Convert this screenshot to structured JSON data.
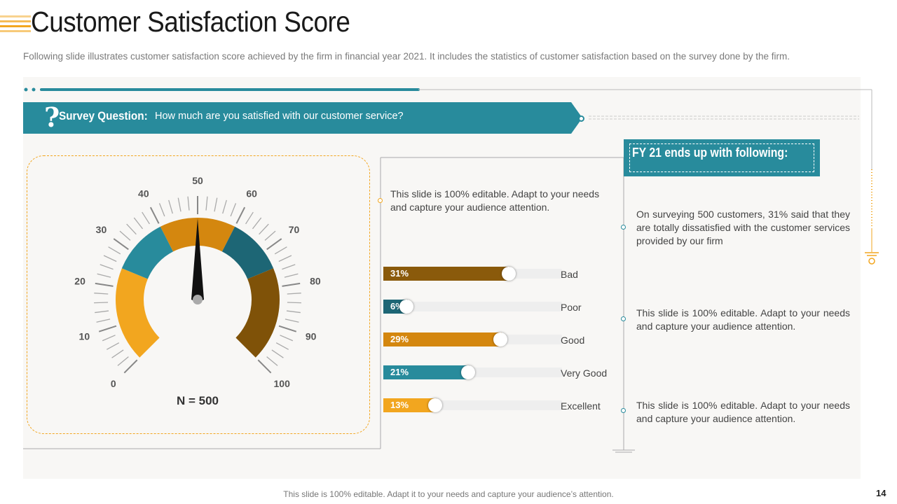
{
  "header": {
    "title": "Customer Satisfaction Score",
    "subtitle": "Following slide illustrates customer satisfaction score achieved by the firm in financial year 2021. It includes the statistics of customer satisfaction based on the survey done by the firm."
  },
  "survey": {
    "icon": "question-icon",
    "icon_glyph": "?",
    "label": "Survey Question:",
    "question": "How much are you satisfied with our customer service?"
  },
  "gauge": {
    "n_label": "N = 500",
    "scale_labels": [
      "0",
      "10",
      "20",
      "30",
      "40",
      "50",
      "60",
      "70",
      "80",
      "90",
      "100"
    ],
    "needle_value": 50
  },
  "bar_note": "This slide is 100% editable. Adapt to your needs and capture your audience attention.",
  "summary": {
    "heading": "FY 21 ends up with following:",
    "notes": [
      "On surveying 500 customers, 31% said that they are totally dissatisfied with the customer services provided by our firm",
      "This slide is 100% editable. Adapt to your needs and capture your audience attention.",
      "This slide is 100% editable. Adapt to your needs and capture your audience attention."
    ]
  },
  "colors": {
    "teal": "#288b9c",
    "dark_teal": "#1d6675",
    "orange": "#f2a61f",
    "dark_orange": "#d4870f",
    "brown": "#7f5208"
  },
  "chart_data": {
    "type": "bar",
    "categories": [
      "Bad",
      "Poor",
      "Good",
      "Very Good",
      "Excellent"
    ],
    "values": [
      31,
      6,
      29,
      21,
      13
    ],
    "labels": [
      "31%",
      "6%",
      "29%",
      "21%",
      "13%"
    ],
    "colors": [
      "#8a5a0b",
      "#1d6675",
      "#d4870f",
      "#288b9c",
      "#f2a61f"
    ],
    "xlim": [
      0,
      50
    ],
    "orientation": "horizontal"
  },
  "footer": {
    "text": "This slide is 100% editable. Adapt it to your needs and capture your audience’s attention.",
    "page": "14"
  }
}
